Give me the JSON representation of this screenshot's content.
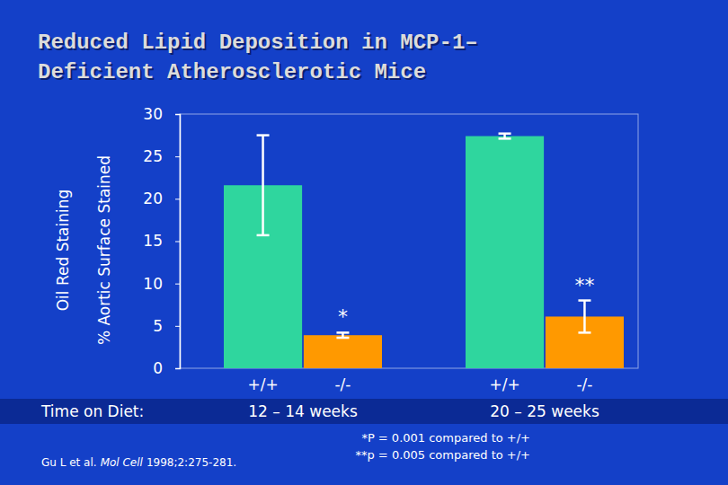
{
  "chart_data": {
    "type": "bar",
    "title": [
      "Reduced Lipid Deposition in MCP-1–",
      "Deficient Atherosclerotic Mice"
    ],
    "ylabel": [
      "Oil Red Staining",
      "% Aortic Surface Stained"
    ],
    "xlabel": "Time on Diet:",
    "categories": [
      "12 – 14 weeks",
      "20 – 25 weeks"
    ],
    "series": [
      {
        "name": "+/+",
        "color": "#2fd69e",
        "values": [
          21.6,
          27.4
        ],
        "errors": [
          5.9,
          0.3
        ]
      },
      {
        "name": "-/-",
        "color": "#ff9900",
        "values": [
          3.9,
          6.1
        ],
        "errors": [
          0.3,
          1.9
        ],
        "significance": [
          "*",
          "**"
        ]
      }
    ],
    "ylim": [
      0,
      30
    ],
    "yticks": [
      0,
      5,
      10,
      15,
      20,
      25,
      30
    ],
    "grid": false,
    "footnotes": [
      "*P = 0.001 compared to +/+",
      "**p = 0.005 compared to +/+"
    ],
    "citation": [
      "Gu L et al.",
      "Mol Cell",
      "1998;2:275-281."
    ]
  }
}
